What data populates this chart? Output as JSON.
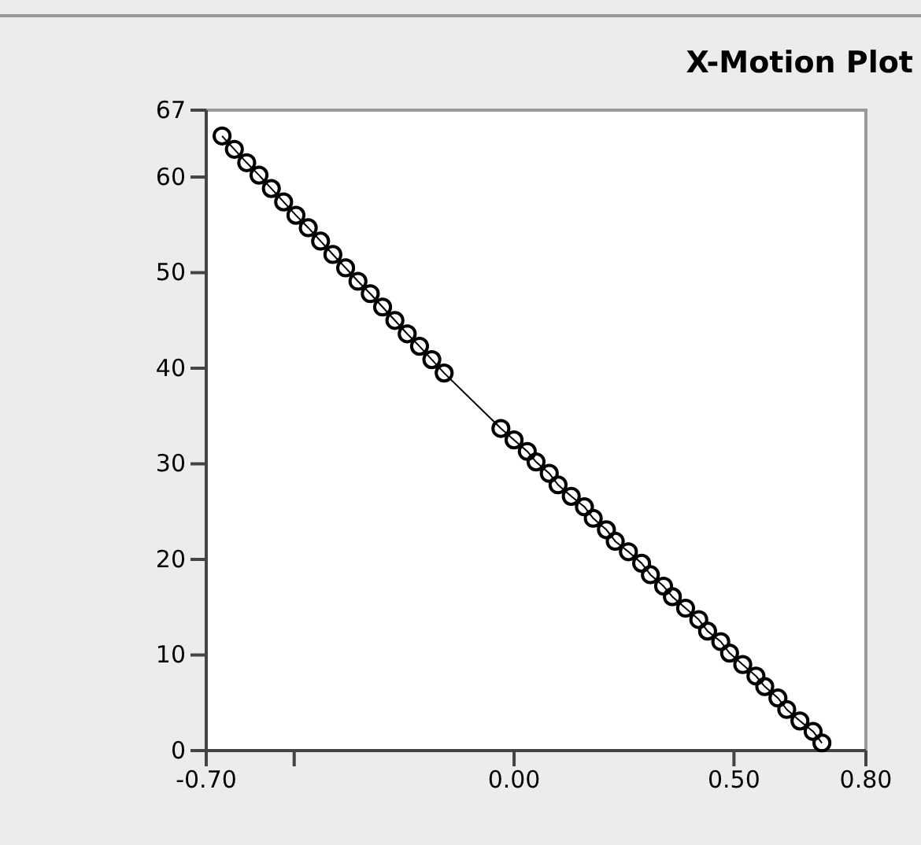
{
  "chart_data": {
    "type": "line",
    "title": "X-Motion Plot",
    "marker": "circle",
    "xlim": [
      -0.7,
      0.8
    ],
    "ylim": [
      0,
      67
    ],
    "xticks": [
      {
        "value": -0.7,
        "label": "-0.70"
      },
      {
        "value": -0.5,
        "label": null
      },
      {
        "value": 0,
        "label": "0.00"
      },
      {
        "value": 0.5,
        "label": "0.50"
      },
      {
        "value": 0.8,
        "label": "0.80"
      }
    ],
    "yticks": [
      0,
      10,
      20,
      30,
      40,
      50,
      60,
      67
    ],
    "series": [
      {
        "color": "#000000",
        "x": [
          -0.664,
          -0.636,
          -0.608,
          -0.58,
          -0.552,
          -0.524,
          -0.496,
          -0.468,
          -0.44,
          -0.412,
          -0.383,
          -0.355,
          -0.327,
          -0.299,
          -0.271,
          -0.243,
          -0.215,
          -0.187,
          -0.159,
          -0.03,
          0.0,
          0.03,
          0.05,
          0.08,
          0.1,
          0.13,
          0.16,
          0.18,
          0.21,
          0.23,
          0.26,
          0.29,
          0.31,
          0.34,
          0.36,
          0.39,
          0.42,
          0.44,
          0.47,
          0.49,
          0.52,
          0.55,
          0.57,
          0.6,
          0.62,
          0.65,
          0.68,
          0.7
        ],
        "values": [
          64.3,
          62.9,
          61.5,
          60.2,
          58.8,
          57.4,
          56.0,
          54.7,
          53.3,
          51.9,
          50.5,
          49.1,
          47.8,
          46.4,
          45.0,
          43.6,
          42.3,
          40.9,
          39.5,
          33.7,
          32.5,
          31.3,
          30.2,
          29.0,
          27.8,
          26.6,
          25.5,
          24.3,
          23.1,
          21.9,
          20.8,
          19.6,
          18.4,
          17.2,
          16.1,
          14.9,
          13.7,
          12.5,
          11.4,
          10.2,
          9.0,
          7.8,
          6.7,
          5.5,
          4.3,
          3.1,
          2.0,
          0.8
        ]
      }
    ]
  }
}
